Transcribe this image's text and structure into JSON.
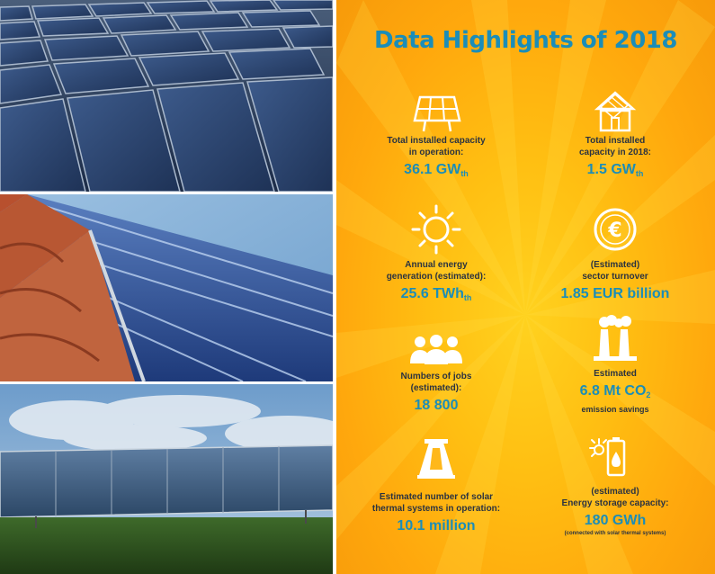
{
  "title": "Data Highlights of 2018",
  "colors": {
    "accent": "#1b8db8",
    "background": "#ffb81a",
    "text": "#2b3340"
  },
  "highlights": [
    {
      "icon": "solar-panel-icon",
      "label_1": "Total installed capacity",
      "label_2": "in operation:",
      "value": "36.1 GW",
      "sub": "th"
    },
    {
      "icon": "house-solar-roof-icon",
      "label_1": "Total installed",
      "label_2": "capacity in 2018:",
      "value": "1.5 GW",
      "sub": "th"
    },
    {
      "icon": "sun-icon",
      "label_1": "Annual energy",
      "label_2": "generation (estimated):",
      "value": "25.6 TWh",
      "sub": "th"
    },
    {
      "icon": "euro-coin-icon",
      "label_1": "(Estimated)",
      "label_2": "sector turnover",
      "value": "1.85 EUR billion"
    },
    {
      "icon": "people-icon",
      "label_1": "Numbers of jobs",
      "label_2": "(estimated):",
      "value": "18 800"
    },
    {
      "icon": "factory-emissions-icon",
      "label_1": "Estimated",
      "value": "6.8 Mt CO",
      "sub": "2",
      "note": "emission savings"
    },
    {
      "icon": "storage-tank-icon",
      "label_1": "Estimated number of solar",
      "label_2": "thermal systems in operation:",
      "value": "10.1 million"
    },
    {
      "icon": "battery-sun-icon",
      "label_1": "(estimated)",
      "label_2": "Energy storage capacity:",
      "value": "180 GWh",
      "note": "(connected with solar thermal systems)"
    }
  ]
}
